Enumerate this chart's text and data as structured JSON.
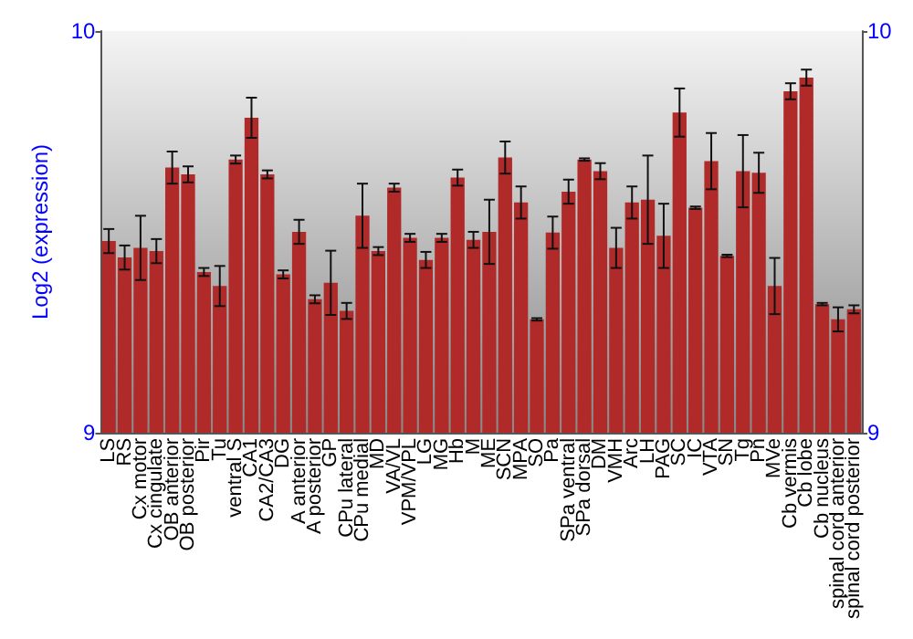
{
  "chart_data": {
    "type": "bar",
    "ylabel": "Log2 (expression)",
    "categories": [
      "LS",
      "RS",
      "Cx motor",
      "Cx cingulate",
      "OB anterior",
      "OB posterior",
      "Pir",
      "Tu",
      "ventral S",
      "CA1",
      "CA2/CA3",
      "DG",
      "A anterior",
      "A posterior",
      "GP",
      "CPu lateral",
      "CPu medial",
      "MD",
      "VA/VL",
      "VPM/VPL",
      "LG",
      "MG",
      "Hb",
      "M",
      "ME",
      "SCN",
      "MPA",
      "SO",
      "Pa",
      "SPa ventral",
      "SPa dorsal",
      "DM",
      "VMH",
      "Arc",
      "LH",
      "PAG",
      "SC",
      "IC",
      "VTA",
      "SN",
      "Tg",
      "Pn",
      "MVe",
      "Cb vermis",
      "Cb lobe",
      "Cb nucleus",
      "spinal cord anterior",
      "spinal cord posterior"
    ],
    "values": [
      9.477,
      9.436,
      9.46,
      9.452,
      9.66,
      9.643,
      9.4,
      9.365,
      9.68,
      9.784,
      9.643,
      9.394,
      9.5,
      9.332,
      9.373,
      9.303,
      9.54,
      9.452,
      9.61,
      9.485,
      9.43,
      9.485,
      9.635,
      9.48,
      9.5,
      9.685,
      9.573,
      9.282,
      9.498,
      9.6,
      9.68,
      9.651,
      9.46,
      9.573,
      9.58,
      9.49,
      9.797,
      9.56,
      9.676,
      9.44,
      9.651,
      9.647,
      9.365,
      9.85,
      9.884,
      9.32,
      9.282,
      9.307
    ],
    "errors": [
      0.03,
      0.03,
      0.08,
      0.03,
      0.04,
      0.02,
      0.01,
      0.05,
      0.01,
      0.05,
      0.01,
      0.01,
      0.03,
      0.01,
      0.08,
      0.02,
      0.08,
      0.01,
      0.01,
      0.01,
      0.02,
      0.01,
      0.02,
      0.02,
      0.08,
      0.04,
      0.04,
      0.003,
      0.04,
      0.03,
      0.003,
      0.02,
      0.05,
      0.04,
      0.11,
      0.08,
      0.06,
      0.003,
      0.07,
      0.003,
      0.09,
      0.05,
      0.07,
      0.02,
      0.02,
      0.003,
      0.03,
      0.01
    ],
    "color": "#b02a2a",
    "ylim": [
      9,
      10
    ],
    "yticks": [
      9,
      10
    ],
    "y2lim": [
      9,
      10
    ],
    "y2ticks": [
      9,
      10
    ],
    "grid": false
  }
}
